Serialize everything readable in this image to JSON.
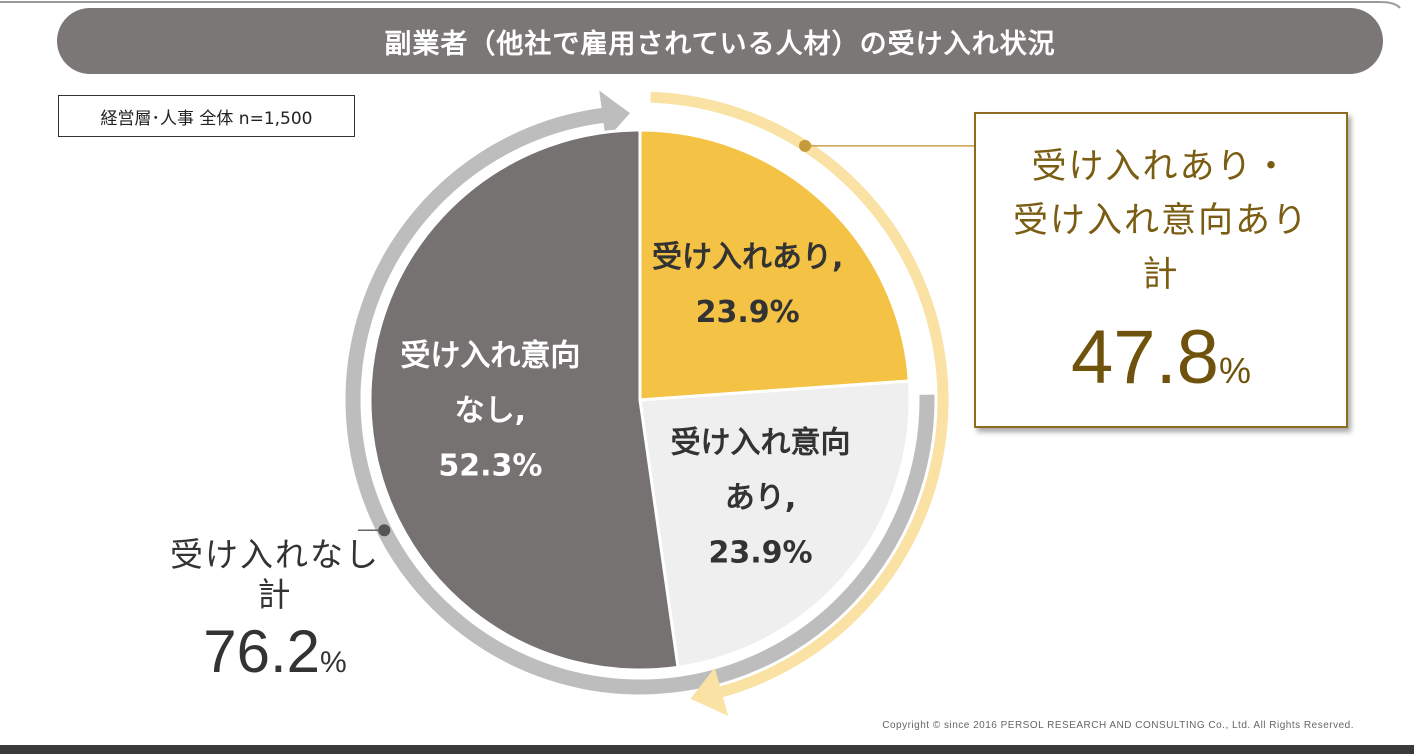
{
  "colors": {
    "title_bg": "#7b7776",
    "slice_none": "#767271",
    "slice_accept": "#f4c244",
    "slice_intent": "#efefef",
    "gray_arc": "#bdbdbd",
    "gold_arc": "#fae1a4",
    "callout_gold": "#8c6d1f",
    "footer_bar": "#3a3a3a"
  },
  "title": "副業者（他社で雇用されている人材）の受け入れ状況",
  "sample_label": "経営層･人事 全体 n=1,500",
  "chart_data": {
    "type": "pie",
    "title": "副業者（他社で雇用されている人材）の受け入れ状況",
    "slices": [
      {
        "label_lines": [
          "受け入れあり,"
        ],
        "value": 23.9,
        "value_label": "23.9%",
        "color": "#f4c244"
      },
      {
        "label_lines": [
          "受け入れ意向",
          "あり,"
        ],
        "value": 23.9,
        "value_label": "23.9%",
        "color": "#efefef"
      },
      {
        "label_lines": [
          "受け入れ意向",
          "なし,"
        ],
        "value": 52.3,
        "value_label": "52.3%",
        "color": "#767271"
      }
    ],
    "groups": [
      {
        "label_lines": [
          "受け入れあり・",
          "受け入れ意向あり",
          "計"
        ],
        "value": "47.8",
        "unit": "%",
        "arc_color": "#fae1a4"
      },
      {
        "label_lines": [
          "受け入れなし",
          "計"
        ],
        "value": "76.2",
        "unit": "%",
        "arc_color": "#bdbdbd"
      }
    ]
  },
  "copyright": "Copyright © since 2016 PERSOL RESEARCH AND CONSULTING Co., Ltd. All Rights Reserved."
}
